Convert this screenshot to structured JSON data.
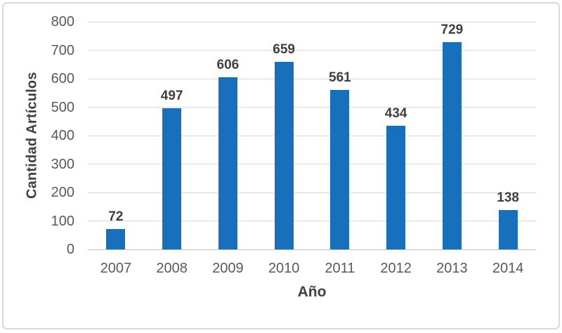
{
  "figure": {
    "background": "#FFFFFF",
    "border_color": "#D9D9D9"
  },
  "chart_data": {
    "type": "bar",
    "categories": [
      "2007",
      "2008",
      "2009",
      "2010",
      "2011",
      "2012",
      "2013",
      "2014"
    ],
    "values": [
      72,
      497,
      606,
      659,
      561,
      434,
      729,
      138
    ],
    "data_labels": [
      "72",
      "497",
      "606",
      "659",
      "561",
      "434",
      "729",
      "138"
    ],
    "title": "",
    "xlabel": "Año",
    "ylabel": "Cantidad Artículos",
    "ylim": [
      0,
      800
    ],
    "yticks": [
      0,
      100,
      200,
      300,
      400,
      500,
      600,
      700,
      800
    ],
    "grid": "horizontal",
    "legend_position": "none",
    "bar_color": "#186FBB",
    "grid_color": "#D9D9D9",
    "baseline_color": "#BFBFBF",
    "tick_label_color": "#595959",
    "value_label_color": "#3F3F3F",
    "axis_title_color": "#404040"
  }
}
